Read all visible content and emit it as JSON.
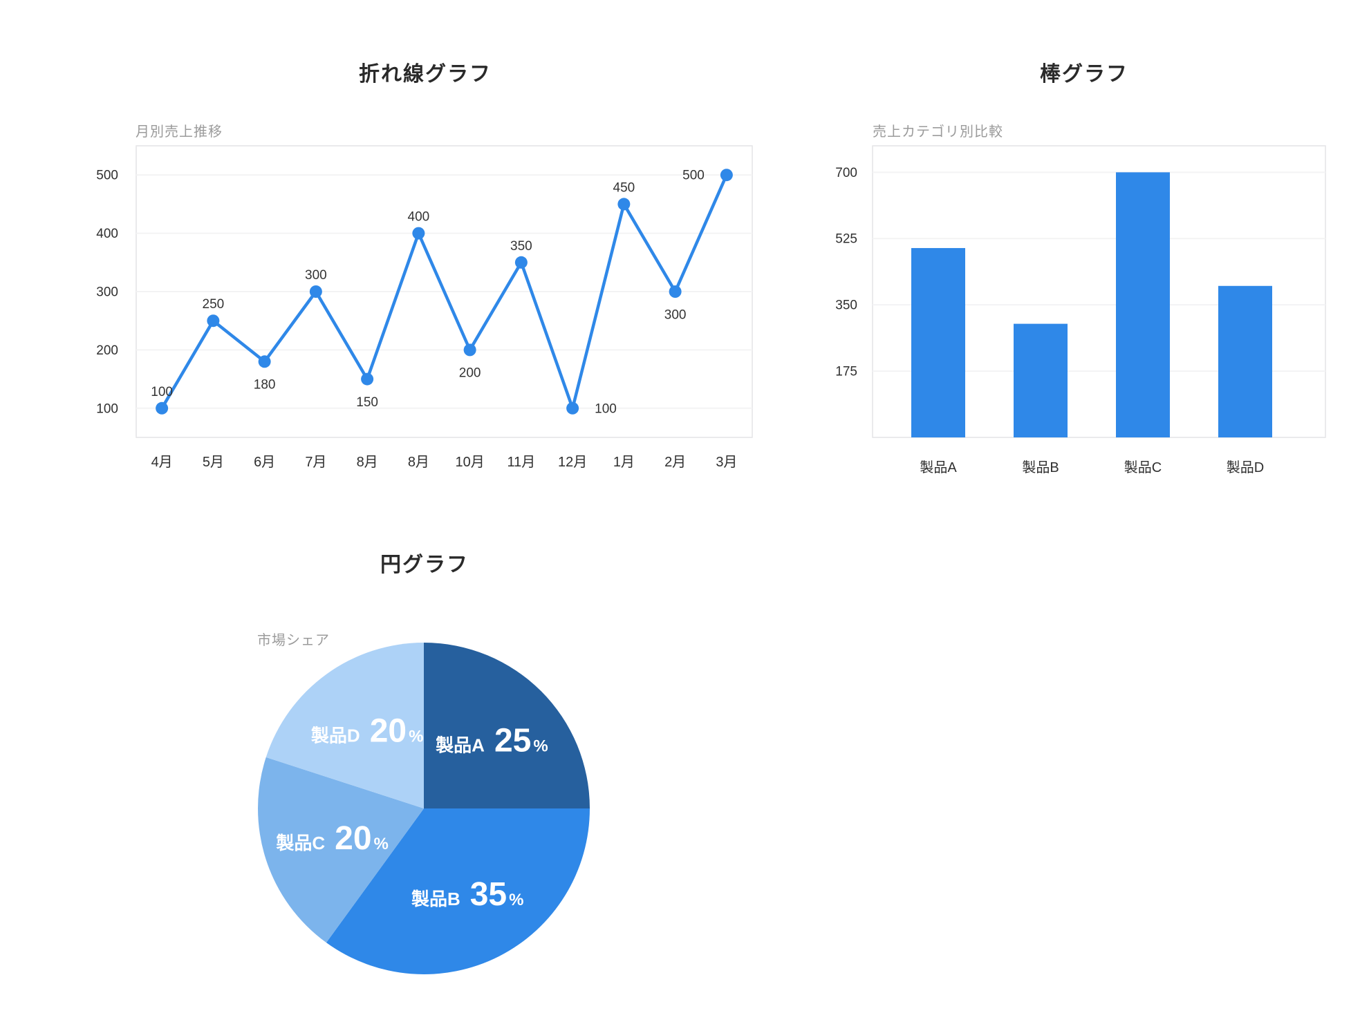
{
  "theme": {
    "accent": "#2F88E8",
    "grid": "#f3f3f4",
    "plot_border": "#e4e4e6",
    "tick": "#2f2f2f",
    "label": "#333333",
    "title": "#2a2a2a",
    "subtitle": "#9b9b9b",
    "background": "#ffffff",
    "pie_label": "#ffffff"
  },
  "chart_data": [
    {
      "type": "line",
      "title": "折れ線グラフ",
      "subtitle": "月別売上推移",
      "categories": [
        "4月",
        "5月",
        "6月",
        "7月",
        "8月",
        "8月",
        "10月",
        "11月",
        "12月",
        "1月",
        "2月",
        "3月"
      ],
      "values": [
        100,
        250,
        180,
        300,
        150,
        400,
        200,
        350,
        100,
        450,
        300,
        500
      ],
      "yticks": [
        100,
        200,
        300,
        400,
        500
      ],
      "ylim": [
        50,
        550
      ],
      "grid": true,
      "legend": "none",
      "color": "#2F88E8",
      "label_positions": [
        "above",
        "above",
        "below",
        "above",
        "below",
        "above",
        "below",
        "above",
        "right",
        "above",
        "below",
        "left"
      ]
    },
    {
      "type": "bar",
      "title": "棒グラフ",
      "subtitle": "売上カテゴリ別比較",
      "categories": [
        "製品A",
        "製品B",
        "製品C",
        "製品D"
      ],
      "values": [
        500,
        300,
        700,
        400
      ],
      "yticks": [
        175,
        350,
        525,
        700
      ],
      "ylim": [
        0,
        770
      ],
      "grid": true,
      "legend": "none",
      "color": "#2F88E8"
    },
    {
      "type": "pie",
      "title": "円グラフ",
      "subtitle": "市場シェア",
      "labels": [
        "製品A",
        "製品B",
        "製品C",
        "製品D"
      ],
      "values": [
        25,
        35,
        20,
        20
      ],
      "unit": "%",
      "colors": [
        "#26609E",
        "#2F88E8",
        "#7CB4EC",
        "#ADD2F7"
      ],
      "start_angle_deg": 0,
      "direction": "clockwise",
      "legend": "none"
    }
  ]
}
